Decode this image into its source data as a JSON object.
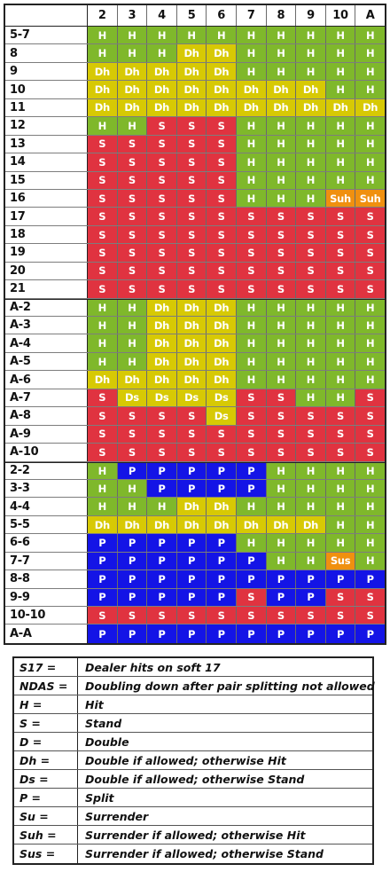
{
  "palette": {
    "H": "#7fb82b",
    "S": "#e03340",
    "D": "#d7c904",
    "P": "#1414e6",
    "R": "#f0900f"
  },
  "columns": [
    "2",
    "3",
    "4",
    "5",
    "6",
    "7",
    "8",
    "9",
    "10",
    "A"
  ],
  "rows": [
    {
      "label": "5-7",
      "cells": [
        "H",
        "H",
        "H",
        "H",
        "H",
        "H",
        "H",
        "H",
        "H",
        "H"
      ]
    },
    {
      "label": "8",
      "cells": [
        "H",
        "H",
        "H",
        "Dh",
        "Dh",
        "H",
        "H",
        "H",
        "H",
        "H"
      ]
    },
    {
      "label": "9",
      "cells": [
        "Dh",
        "Dh",
        "Dh",
        "Dh",
        "Dh",
        "H",
        "H",
        "H",
        "H",
        "H"
      ]
    },
    {
      "label": "10",
      "cells": [
        "Dh",
        "Dh",
        "Dh",
        "Dh",
        "Dh",
        "Dh",
        "Dh",
        "Dh",
        "H",
        "H"
      ]
    },
    {
      "label": "11",
      "cells": [
        "Dh",
        "Dh",
        "Dh",
        "Dh",
        "Dh",
        "Dh",
        "Dh",
        "Dh",
        "Dh",
        "Dh"
      ]
    },
    {
      "label": "12",
      "cells": [
        "H",
        "H",
        "S",
        "S",
        "S",
        "H",
        "H",
        "H",
        "H",
        "H"
      ]
    },
    {
      "label": "13",
      "cells": [
        "S",
        "S",
        "S",
        "S",
        "S",
        "H",
        "H",
        "H",
        "H",
        "H"
      ]
    },
    {
      "label": "14",
      "cells": [
        "S",
        "S",
        "S",
        "S",
        "S",
        "H",
        "H",
        "H",
        "H",
        "H"
      ]
    },
    {
      "label": "15",
      "cells": [
        "S",
        "S",
        "S",
        "S",
        "S",
        "H",
        "H",
        "H",
        "H",
        "H"
      ]
    },
    {
      "label": "16",
      "cells": [
        "S",
        "S",
        "S",
        "S",
        "S",
        "H",
        "H",
        "H",
        "Suh",
        "Suh"
      ]
    },
    {
      "label": "17",
      "cells": [
        "S",
        "S",
        "S",
        "S",
        "S",
        "S",
        "S",
        "S",
        "S",
        "S"
      ]
    },
    {
      "label": "18",
      "cells": [
        "S",
        "S",
        "S",
        "S",
        "S",
        "S",
        "S",
        "S",
        "S",
        "S"
      ]
    },
    {
      "label": "19",
      "cells": [
        "S",
        "S",
        "S",
        "S",
        "S",
        "S",
        "S",
        "S",
        "S",
        "S"
      ]
    },
    {
      "label": "20",
      "cells": [
        "S",
        "S",
        "S",
        "S",
        "S",
        "S",
        "S",
        "S",
        "S",
        "S"
      ]
    },
    {
      "label": "21",
      "cells": [
        "S",
        "S",
        "S",
        "S",
        "S",
        "S",
        "S",
        "S",
        "S",
        "S"
      ]
    },
    {
      "label": "A-2",
      "cells": [
        "H",
        "H",
        "Dh",
        "Dh",
        "Dh",
        "H",
        "H",
        "H",
        "H",
        "H"
      ]
    },
    {
      "label": "A-3",
      "cells": [
        "H",
        "H",
        "Dh",
        "Dh",
        "Dh",
        "H",
        "H",
        "H",
        "H",
        "H"
      ]
    },
    {
      "label": "A-4",
      "cells": [
        "H",
        "H",
        "Dh",
        "Dh",
        "Dh",
        "H",
        "H",
        "H",
        "H",
        "H"
      ]
    },
    {
      "label": "A-5",
      "cells": [
        "H",
        "H",
        "Dh",
        "Dh",
        "Dh",
        "H",
        "H",
        "H",
        "H",
        "H"
      ]
    },
    {
      "label": "A-6",
      "cells": [
        "Dh",
        "Dh",
        "Dh",
        "Dh",
        "Dh",
        "H",
        "H",
        "H",
        "H",
        "H"
      ]
    },
    {
      "label": "A-7",
      "cells": [
        "S",
        "Ds",
        "Ds",
        "Ds",
        "Ds",
        "S",
        "S",
        "H",
        "H",
        "S"
      ]
    },
    {
      "label": "A-8",
      "cells": [
        "S",
        "S",
        "S",
        "S",
        "Ds",
        "S",
        "S",
        "S",
        "S",
        "S"
      ]
    },
    {
      "label": "A-9",
      "cells": [
        "S",
        "S",
        "S",
        "S",
        "S",
        "S",
        "S",
        "S",
        "S",
        "S"
      ]
    },
    {
      "label": "A-10",
      "cells": [
        "S",
        "S",
        "S",
        "S",
        "S",
        "S",
        "S",
        "S",
        "S",
        "S"
      ]
    },
    {
      "label": "2-2",
      "cells": [
        "H",
        "P",
        "P",
        "P",
        "P",
        "P",
        "H",
        "H",
        "H",
        "H"
      ]
    },
    {
      "label": "3-3",
      "cells": [
        "H",
        "H",
        "P",
        "P",
        "P",
        "P",
        "H",
        "H",
        "H",
        "H"
      ]
    },
    {
      "label": "4-4",
      "cells": [
        "H",
        "H",
        "H",
        "Dh",
        "Dh",
        "H",
        "H",
        "H",
        "H",
        "H"
      ]
    },
    {
      "label": "5-5",
      "cells": [
        "Dh",
        "Dh",
        "Dh",
        "Dh",
        "Dh",
        "Dh",
        "Dh",
        "Dh",
        "H",
        "H"
      ]
    },
    {
      "label": "6-6",
      "cells": [
        "P",
        "P",
        "P",
        "P",
        "P",
        "H",
        "H",
        "H",
        "H",
        "H"
      ]
    },
    {
      "label": "7-7",
      "cells": [
        "P",
        "P",
        "P",
        "P",
        "P",
        "P",
        "H",
        "H",
        "Sus",
        "H"
      ]
    },
    {
      "label": "8-8",
      "cells": [
        "P",
        "P",
        "P",
        "P",
        "P",
        "P",
        "P",
        "P",
        "P",
        "P"
      ]
    },
    {
      "label": "9-9",
      "cells": [
        "P",
        "P",
        "P",
        "P",
        "P",
        "S",
        "P",
        "P",
        "S",
        "S"
      ]
    },
    {
      "label": "10-10",
      "cells": [
        "S",
        "S",
        "S",
        "S",
        "S",
        "S",
        "S",
        "S",
        "S",
        "S"
      ]
    },
    {
      "label": "A-A",
      "cells": [
        "P",
        "P",
        "P",
        "P",
        "P",
        "P",
        "P",
        "P",
        "P",
        "P"
      ]
    }
  ],
  "legend": [
    {
      "key": "S17 =",
      "desc": "Dealer hits on soft 17"
    },
    {
      "key": "NDAS =",
      "desc": "Doubling down after pair splitting not allowed"
    },
    {
      "key": "H =",
      "desc": "Hit"
    },
    {
      "key": "S =",
      "desc": "Stand"
    },
    {
      "key": "D =",
      "desc": "Double"
    },
    {
      "key": "Dh =",
      "desc": "Double if allowed; otherwise Hit"
    },
    {
      "key": "Ds =",
      "desc": "Double if allowed; otherwise Stand"
    },
    {
      "key": "P =",
      "desc": "Split"
    },
    {
      "key": "Su =",
      "desc": "Surrender"
    },
    {
      "key": "Suh =",
      "desc": "Surrender if allowed; otherwise Hit"
    },
    {
      "key": "Sus =",
      "desc": "Surrender if allowed; otherwise Stand"
    }
  ]
}
